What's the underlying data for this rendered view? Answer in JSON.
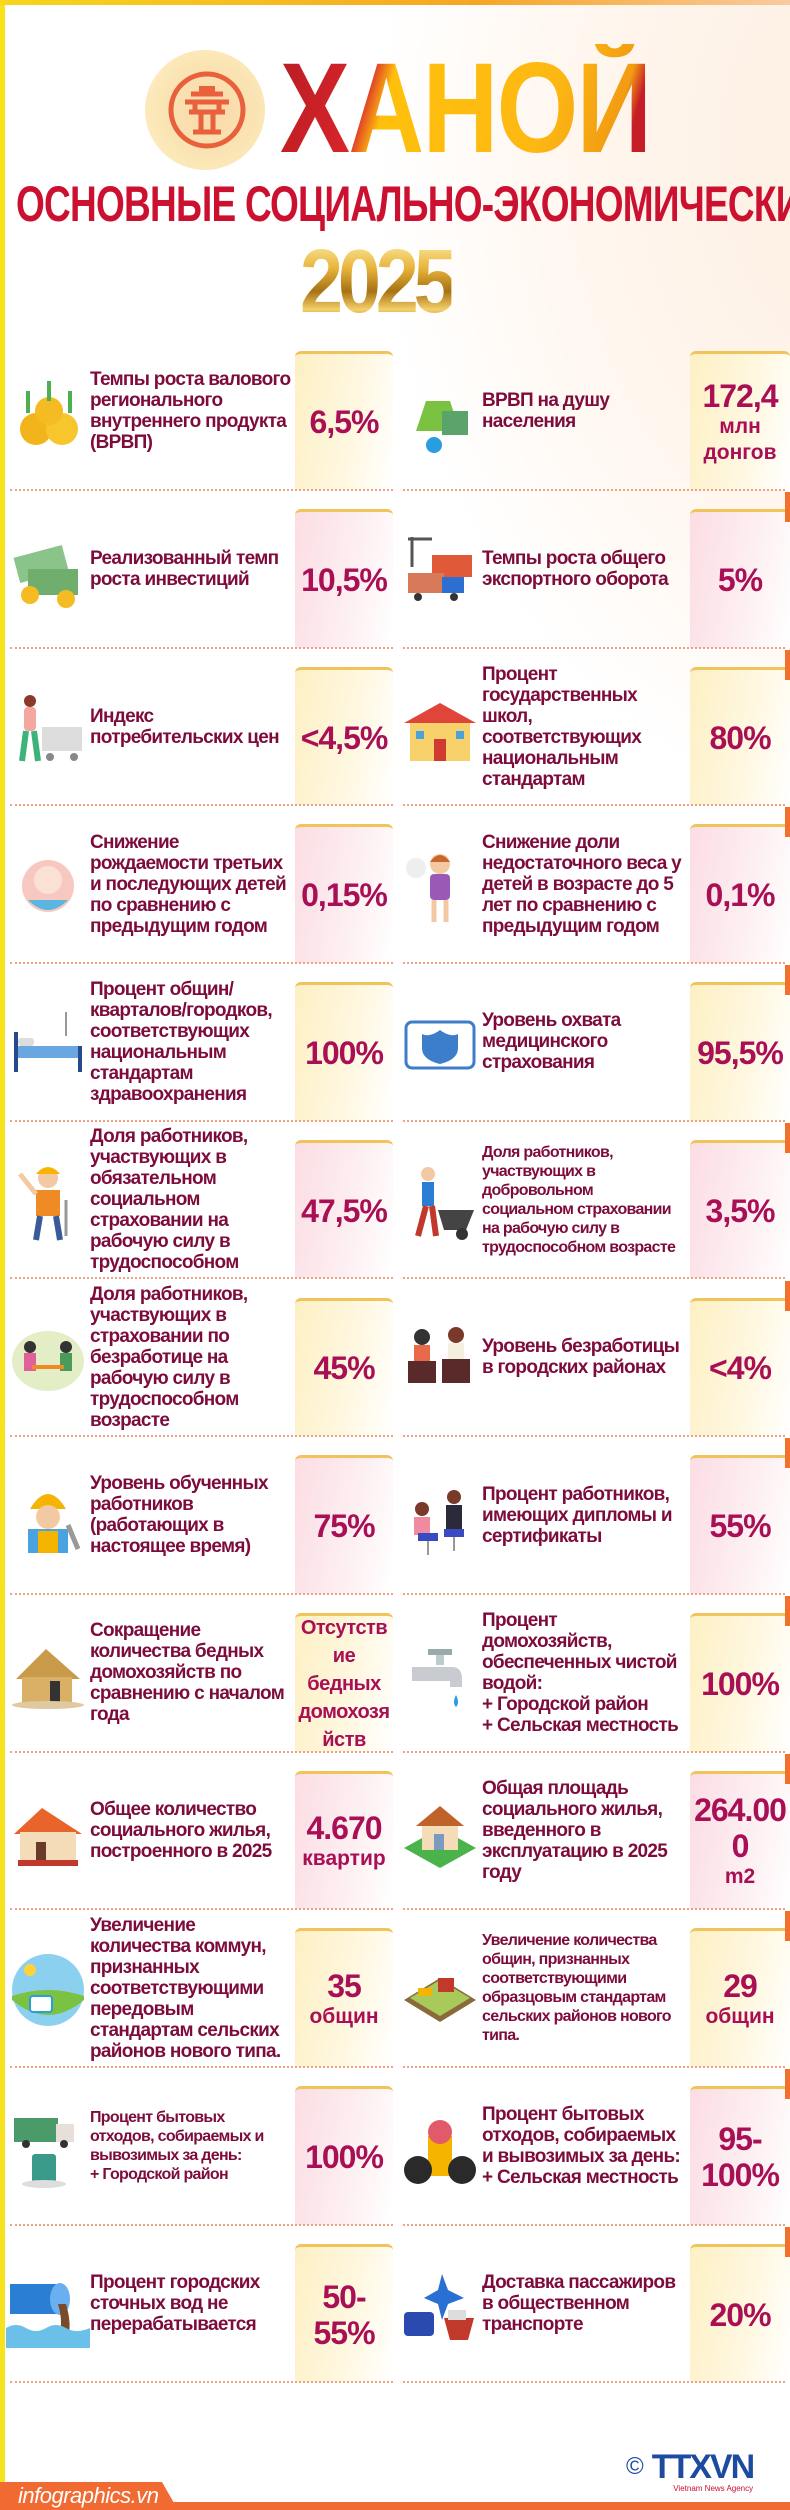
{
  "header": {
    "city": "ХАНОЙ",
    "subtitle": "ОСНОВНЫЕ СОЦИАЛЬНО-ЭКОНОМИЧЕСКИЕ",
    "year": "2025",
    "logo_icon": "hanoi-emblem-icon"
  },
  "colors": {
    "label": "#7d0c3c",
    "value": "#a80f55",
    "title_red": "#cc1030",
    "accent_orange": "#f06a32"
  },
  "rows": [
    {
      "left": {
        "icon": "growth-coins-icon",
        "text": "Темпы роста валового регионального внутреннего продукта (ВРВП)",
        "value": "6,5%"
      },
      "right": {
        "icon": "money-bag-icon",
        "text": "ВРВП на душу населения",
        "value": "172,4",
        "unit": "млн донгов"
      }
    },
    {
      "left": {
        "icon": "cash-stack-icon",
        "text": "Реализованный темп роста инвестиций",
        "value": "10,5%"
      },
      "right": {
        "icon": "export-trucks-icon",
        "text": "Темпы роста общего экспортного оборота",
        "value": "5%"
      }
    },
    {
      "left": {
        "icon": "shopping-cart-icon",
        "text": "Индекс потребительских цен",
        "value": "<4,5%"
      },
      "right": {
        "icon": "school-building-icon",
        "text": "Процент государственных школ, соответствующих национальным стандартам",
        "value": "80%"
      }
    },
    {
      "left": {
        "icon": "baby-icon",
        "text": "Снижение рождаемости третьих и последующих детей по сравнению с предыдущим годом",
        "value": "0,15%"
      },
      "right": {
        "icon": "child-icon",
        "text": "Снижение доли недостаточного веса у детей в возрасте до 5 лет по сравнению с предыдущим годом",
        "value": "0,1%"
      }
    },
    {
      "left": {
        "icon": "hospital-bed-icon",
        "text": "Процент общин/кварталов/городков, соответствующих национальным стандартам здравоохранения",
        "value": "100%"
      },
      "right": {
        "icon": "health-insurance-icon",
        "text": "Уровень охвата медицинского страхования",
        "value": "95,5%"
      }
    },
    {
      "left": {
        "icon": "construction-worker-icon",
        "text": "Доля работников, участвующих в обязательном социальном страховании на рабочую силу в трудоспособном",
        "value": "47,5%"
      },
      "right": {
        "icon": "wheelbarrow-worker-icon",
        "text": "Доля работников, участвующих в добровольном социальном страховании на рабочую силу в трудоспособном возрасте",
        "value": "3,5%",
        "small": true
      }
    },
    {
      "left": {
        "icon": "meeting-icon",
        "text": "Доля работников, участвующих в страховании по безработице на рабочую силу в трудоспособном возрасте",
        "value": "45%"
      },
      "right": {
        "icon": "boxes-people-icon",
        "text": "Уровень безработицы в городских районах",
        "value": "<4%"
      }
    },
    {
      "left": {
        "icon": "worker-wrench-icon",
        "text": "Уровень обученных работников (работающих в настоящее время)",
        "value": "75%"
      },
      "right": {
        "icon": "interview-icon",
        "text": "Процент работников, имеющих дипломы и сертификаты",
        "value": "55%"
      }
    },
    {
      "left": {
        "icon": "hut-icon",
        "text": "Сокращение количества бедных домохозяйств по сравнению с началом года",
        "value": "Отсутствие бедных домохозяйств",
        "value_small": true
      },
      "right": {
        "icon": "water-faucet-icon",
        "text": "Процент домохозяйств, обеспеченных чистой водой:",
        "lines": [
          "+ Городской район",
          "+ Сельская местность"
        ],
        "value": "100%"
      }
    },
    {
      "left": {
        "icon": "house-icon",
        "text": "Общее количество социального жилья, построенного в 2025",
        "value": "4.670",
        "unit": "квартир"
      },
      "right": {
        "icon": "house-3d-icon",
        "text": "Общая площадь социального жилья, введенного в эксплуатацию в 2025 году",
        "value": "264.000",
        "unit": "m2"
      }
    },
    {
      "left": {
        "icon": "countryside-icon",
        "text": "Увеличение количества коммун, признанных соответствующими передовым стандартам сельских районов нового типа.",
        "value": "35",
        "unit": "общин"
      },
      "right": {
        "icon": "farm-icon",
        "text": "Увеличение количества общин, признанных соответствующими образцовым стандартам сельских районов нового типа.",
        "value": "29",
        "unit": "общин",
        "small": true
      }
    },
    {
      "left": {
        "icon": "garbage-truck-icon",
        "text": "Процент бытовых отходов, собираемых и вывозимых за день:",
        "lines": [
          "+ Городской район"
        ],
        "value": "100%",
        "small": true
      },
      "right": {
        "icon": "trash-bags-icon",
        "text": "Процент бытовых отходов, собираемых и вывозимых за день:",
        "lines": [
          "+ Сельская местность"
        ],
        "value": "95-100%"
      }
    },
    {
      "left": {
        "icon": "sewage-pipe-icon",
        "text": "Процент городских сточных вод не перерабатывается",
        "value": "50-55%"
      },
      "right": {
        "icon": "public-transport-icon",
        "text": "Доставка пассажиров в общественном транспорте",
        "value": "20%"
      }
    }
  ],
  "footer": {
    "site": "infographics.vn",
    "copyright": "©",
    "agency_logo": "TTXVN",
    "agency_name": "Vietnam News Agency"
  }
}
